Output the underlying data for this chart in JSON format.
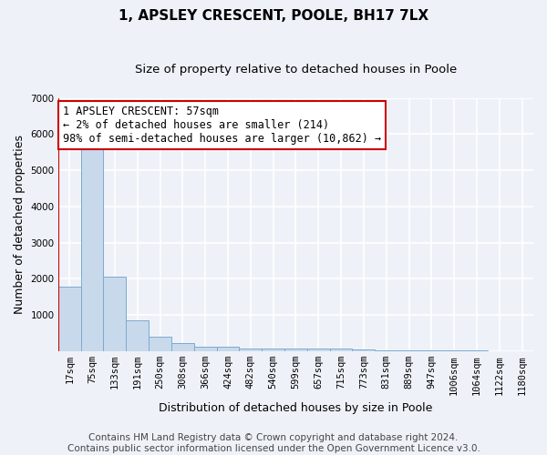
{
  "title1": "1, APSLEY CRESCENT, POOLE, BH17 7LX",
  "title2": "Size of property relative to detached houses in Poole",
  "xlabel": "Distribution of detached houses by size in Poole",
  "ylabel": "Number of detached properties",
  "categories": [
    "17sqm",
    "75sqm",
    "133sqm",
    "191sqm",
    "250sqm",
    "308sqm",
    "366sqm",
    "424sqm",
    "482sqm",
    "540sqm",
    "599sqm",
    "657sqm",
    "715sqm",
    "773sqm",
    "831sqm",
    "889sqm",
    "947sqm",
    "1006sqm",
    "1064sqm",
    "1122sqm",
    "1180sqm"
  ],
  "values": [
    1780,
    5780,
    2060,
    840,
    390,
    230,
    110,
    110,
    80,
    80,
    70,
    80,
    70,
    40,
    30,
    20,
    15,
    10,
    8,
    6,
    5
  ],
  "bar_color": "#c9d9ec",
  "bar_edge_color": "#7aaad0",
  "highlight_color": "#cc0000",
  "annotation_text": "1 APSLEY CRESCENT: 57sqm\n← 2% of detached houses are smaller (214)\n98% of semi-detached houses are larger (10,862) →",
  "annotation_box_color": "white",
  "annotation_box_edge_color": "#cc0000",
  "ylim": [
    0,
    7000
  ],
  "yticks": [
    0,
    1000,
    2000,
    3000,
    4000,
    5000,
    6000,
    7000
  ],
  "footer1": "Contains HM Land Registry data © Crown copyright and database right 2024.",
  "footer2": "Contains public sector information licensed under the Open Government Licence v3.0.",
  "bg_color": "#eef2f8",
  "grid_color": "white",
  "title1_fontsize": 11,
  "title2_fontsize": 9.5,
  "tick_fontsize": 7.5,
  "label_fontsize": 9,
  "annotation_fontsize": 8.5,
  "footer_fontsize": 7.5
}
